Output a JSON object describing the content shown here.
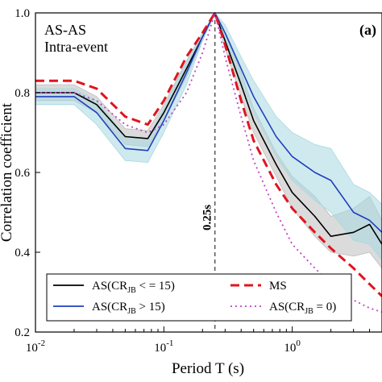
{
  "chart_data": {
    "type": "line",
    "panel_title": "AS-AS",
    "panel_subtitle": "Intra-event",
    "panel_label": "(a)",
    "xlabel": "Period T (s)",
    "ylabel": "Correlation coefficient",
    "x_scale": "log",
    "xlim": [
      0.01,
      5
    ],
    "ylim": [
      0.2,
      1.0
    ],
    "x_ticks": [
      {
        "value": 0.01,
        "base": "10",
        "exp": "-2"
      },
      {
        "value": 0.1,
        "base": "10",
        "exp": "-1"
      },
      {
        "value": 1,
        "base": "10",
        "exp": "0"
      }
    ],
    "y_ticks": [
      "0.2",
      "0.4",
      "0.6",
      "0.8",
      "1.0"
    ],
    "y_tick_values": [
      0.2,
      0.4,
      0.6,
      0.8,
      1.0
    ],
    "reference_line": {
      "x": 0.25,
      "label": "0.25s"
    },
    "legend": {
      "placement": "bottom",
      "entries": [
        {
          "series": 0,
          "prefix": "AS(CR",
          "sub": "JB",
          "suffix": " < = 15)"
        },
        {
          "series": 2,
          "prefix": "MS",
          "sub": "",
          "suffix": ""
        },
        {
          "series": 1,
          "prefix": "AS(CR",
          "sub": "JB",
          "suffix": " > 15)"
        },
        {
          "series": 3,
          "prefix": "AS(CR",
          "sub": "JB",
          "suffix": " = 0)"
        }
      ]
    },
    "series": [
      {
        "color": "#000000",
        "style": "solid",
        "band_color": "#bdbdbd",
        "x": [
          0.01,
          0.02,
          0.03,
          0.05,
          0.075,
          0.1,
          0.15,
          0.2,
          0.25,
          0.3,
          0.4,
          0.5,
          0.75,
          1.0,
          1.5,
          2.0,
          3.0,
          4.0,
          5.0
        ],
        "y": [
          0.8,
          0.8,
          0.77,
          0.69,
          0.685,
          0.75,
          0.86,
          0.94,
          1.0,
          0.93,
          0.82,
          0.73,
          0.62,
          0.55,
          0.49,
          0.44,
          0.45,
          0.47,
          0.42
        ],
        "band_lo": [
          0.78,
          0.78,
          0.75,
          0.67,
          0.665,
          0.73,
          0.84,
          0.93,
          1.0,
          0.91,
          0.79,
          0.7,
          0.59,
          0.51,
          0.44,
          0.4,
          0.39,
          0.4,
          0.36
        ],
        "band_hi": [
          0.82,
          0.82,
          0.79,
          0.71,
          0.705,
          0.77,
          0.88,
          0.95,
          1.0,
          0.95,
          0.85,
          0.76,
          0.65,
          0.59,
          0.54,
          0.49,
          0.51,
          0.54,
          0.48
        ]
      },
      {
        "color": "#1f3fbf",
        "style": "solid",
        "band_color": "#a8d8e0",
        "x": [
          0.01,
          0.02,
          0.03,
          0.05,
          0.075,
          0.1,
          0.15,
          0.2,
          0.25,
          0.3,
          0.4,
          0.5,
          0.75,
          1.0,
          1.5,
          2.0,
          3.0,
          4.0,
          5.0
        ],
        "y": [
          0.79,
          0.79,
          0.75,
          0.66,
          0.655,
          0.73,
          0.85,
          0.94,
          1.0,
          0.95,
          0.86,
          0.79,
          0.69,
          0.64,
          0.6,
          0.58,
          0.5,
          0.48,
          0.45
        ],
        "band_lo": [
          0.77,
          0.77,
          0.72,
          0.63,
          0.625,
          0.7,
          0.82,
          0.93,
          1.0,
          0.93,
          0.83,
          0.75,
          0.64,
          0.58,
          0.53,
          0.5,
          0.43,
          0.42,
          0.38
        ],
        "band_hi": [
          0.81,
          0.81,
          0.78,
          0.69,
          0.685,
          0.76,
          0.88,
          0.95,
          1.0,
          0.97,
          0.89,
          0.83,
          0.74,
          0.7,
          0.67,
          0.66,
          0.57,
          0.55,
          0.52
        ]
      },
      {
        "color": "#e0141e",
        "style": "dashed",
        "band_color": null,
        "x": [
          0.01,
          0.02,
          0.03,
          0.05,
          0.075,
          0.1,
          0.15,
          0.2,
          0.25,
          0.3,
          0.4,
          0.5,
          0.75,
          1.0,
          1.5,
          2.0,
          3.0,
          4.0,
          5.0
        ],
        "y": [
          0.83,
          0.83,
          0.81,
          0.74,
          0.72,
          0.78,
          0.89,
          0.95,
          1.0,
          0.92,
          0.78,
          0.68,
          0.57,
          0.51,
          0.45,
          0.41,
          0.36,
          0.32,
          0.29
        ],
        "band_lo": null,
        "band_hi": null
      },
      {
        "color": "#c040c0",
        "style": "dotted",
        "band_color": null,
        "x": [
          0.01,
          0.02,
          0.03,
          0.05,
          0.075,
          0.1,
          0.15,
          0.2,
          0.25,
          0.3,
          0.4,
          0.5,
          0.75,
          1.0,
          1.5,
          2.0,
          3.0,
          4.0,
          5.0
        ],
        "y": [
          0.8,
          0.8,
          0.78,
          0.72,
          0.7,
          0.72,
          0.8,
          0.9,
          1.0,
          0.89,
          0.74,
          0.63,
          0.5,
          0.42,
          0.36,
          0.32,
          0.28,
          0.26,
          0.25
        ],
        "band_lo": null,
        "band_hi": null
      }
    ]
  }
}
